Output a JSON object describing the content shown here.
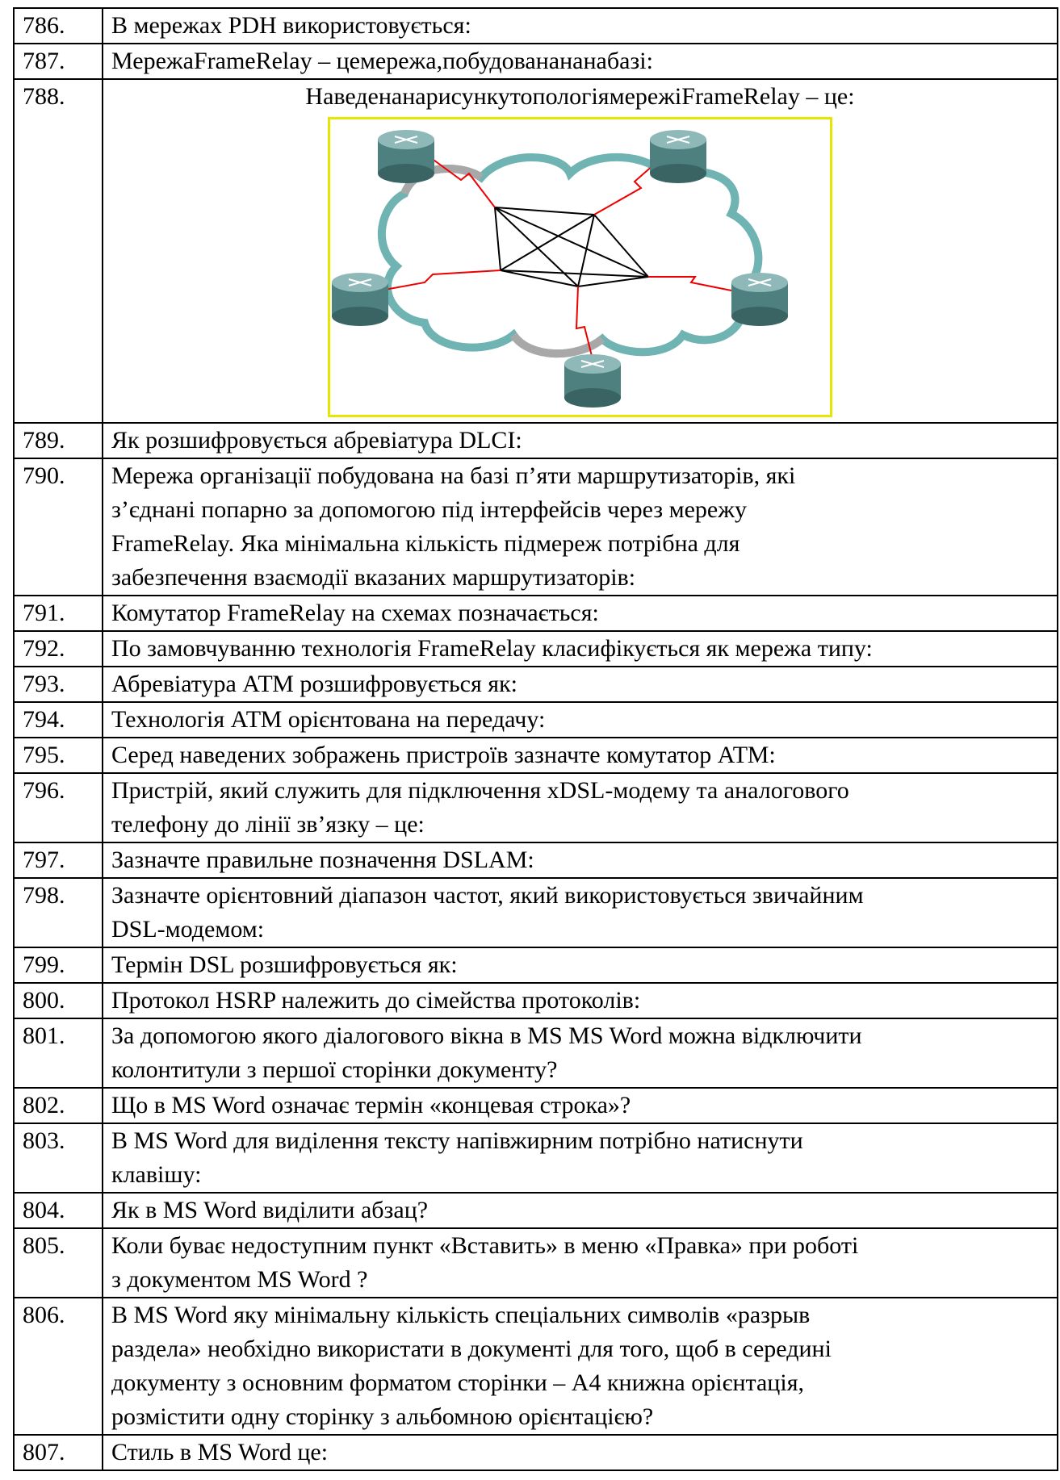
{
  "table": {
    "rows": [
      {
        "num": "786.",
        "lines": [
          "В мережах PDH використовується:"
        ]
      },
      {
        "num": "787.",
        "lines": [
          "МережаFrameRelay – цемережа,побудованананабазі:"
        ]
      },
      {
        "num": "788.",
        "lines": [
          "НаведенанарисункутопологіямережіFrameRelay – це:"
        ],
        "figure": true
      },
      {
        "num": "789.",
        "lines": [
          "Як розшифровується абревіатура DLCI:"
        ]
      },
      {
        "num": "790.",
        "lines": [
          "Мережа організації побудована на базі п’яти маршрутизаторів, які",
          "з’єднані попарно за допомогою під інтерфейсів через мережу",
          "FrameRelay. Яка мінімальна кількість підмереж потрібна для",
          "забезпечення взаємодії вказаних маршрутизаторів:"
        ]
      },
      {
        "num": "791.",
        "lines": [
          "Комутатор FrameRelay на схемах позначається:"
        ]
      },
      {
        "num": "792.",
        "lines": [
          "По замовчуванню технологія FrameRelay класифікується як мережа типу:"
        ]
      },
      {
        "num": "793.",
        "lines": [
          "Абревіатура АТМ розшифровується як:"
        ]
      },
      {
        "num": "794.",
        "lines": [
          "Технологія АТМ орієнтована на передачу:"
        ]
      },
      {
        "num": "795.",
        "lines": [
          "Серед наведених зображень пристроїв зазначте комутатор АТМ:"
        ]
      },
      {
        "num": "796.",
        "lines": [
          "Пристрій, який служить для підключення xDSL-модему та аналогового",
          "телефону до лінії зв’язку – це:"
        ]
      },
      {
        "num": "797.",
        "lines": [
          "Зазначте правильне позначення DSLAM:"
        ]
      },
      {
        "num": "798.",
        "lines": [
          "Зазначте орієнтовний діапазон частот, який використовується звичайним",
          "DSL-модемом:"
        ]
      },
      {
        "num": "799.",
        "lines": [
          "Термін DSL розшифровується як:"
        ]
      },
      {
        "num": "800.",
        "lines": [
          "Протокол HSRP належить до сімейства протоколів:"
        ]
      },
      {
        "num": "801.",
        "lines": [
          "За допомогою якого діалогового вікна в MS MS Word можна відключити",
          "колонтитули з першої сторінки документу?"
        ]
      },
      {
        "num": "802.",
        "lines": [
          "Що в MS Word означає термін «концевая строка»?"
        ]
      },
      {
        "num": "803.",
        "lines": [
          "В MS Word для виділення тексту напівжирним потрібно натиснути",
          "клавішу:"
        ]
      },
      {
        "num": "804.",
        "lines": [
          "Як в MS Word виділити абзац?"
        ]
      },
      {
        "num": "805.",
        "lines": [
          "Коли буває недоступним пункт «Вставить» в меню «Правка» при роботі",
          "з документом MS Word ?"
        ]
      },
      {
        "num": "806.",
        "lines": [
          "В MS Word яку мінімальну кількість спеціальних символів «разрыв",
          "раздела» необхідно використати в документі для того, щоб в середині",
          "документу з основним форматом сторінки – А4 книжна орієнтація,",
          "розмістити одну сторінку з альбомною орієнтацією?"
        ]
      },
      {
        "num": "807.",
        "lines": [
          "Стиль в MS Word це:"
        ]
      }
    ]
  }
}
